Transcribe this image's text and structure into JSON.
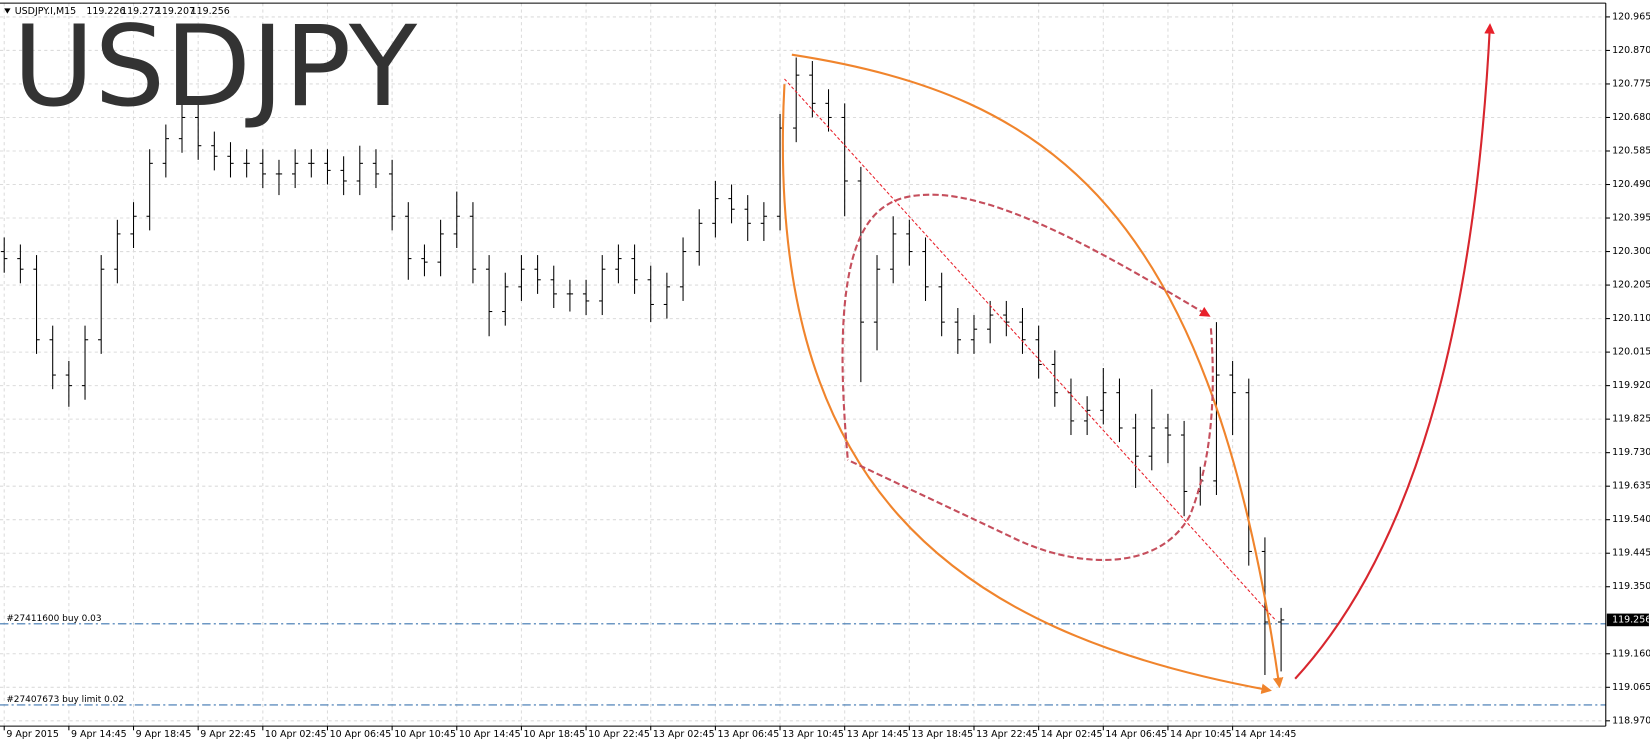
{
  "chart_data": {
    "type": "ohlc",
    "symbol": "USDJPY.I,M15",
    "header_values": [
      119.226,
      119.272,
      119.207,
      119.256
    ],
    "watermark": "USDJPY",
    "ylim": [
      118.955,
      121.004
    ],
    "yticks": [
      {
        "value": 118.97,
        "label": "118.970"
      },
      119.065,
      {
        "value": 119.16,
        "label": "119.160"
      },
      {
        "value": 119.35,
        "label": "119.350"
      },
      119.445,
      {
        "value": 119.54,
        "label": "119.540"
      },
      119.635,
      {
        "value": 119.73,
        "label": "119.730"
      },
      119.825,
      {
        "value": 119.92,
        "label": "119.920"
      },
      120.015,
      {
        "value": 120.11,
        "label": "120.110"
      },
      120.205,
      {
        "value": 120.3,
        "label": "120.300"
      },
      120.395,
      {
        "value": 120.49,
        "label": "120.490"
      },
      120.585,
      {
        "value": 120.68,
        "label": "120.680"
      },
      120.775,
      {
        "value": 120.87,
        "label": "120.870"
      },
      120.965
    ],
    "current_price": 119.256,
    "grid": true,
    "color": "#000000",
    "categories": [
      "9 Apr 2015",
      null,
      null,
      null,
      "9 Apr 14:45",
      null,
      null,
      null,
      "9 Apr 18:45",
      null,
      null,
      null,
      "9 Apr 22:45",
      null,
      null,
      null,
      "10 Apr 02:45",
      null,
      null,
      null,
      "10 Apr 06:45",
      null,
      null,
      null,
      "10 Apr 10:45",
      null,
      null,
      null,
      "10 Apr 14:45",
      null,
      null,
      null,
      "10 Apr 18:45",
      null,
      null,
      null,
      "10 Apr 22:45",
      null,
      null,
      null,
      "13 Apr 02:45",
      null,
      null,
      null,
      "13 Apr 06:45",
      null,
      null,
      null,
      "13 Apr 10:45",
      null,
      null,
      null,
      "13 Apr 14:45",
      null,
      null,
      null,
      "13 Apr 18:45",
      null,
      null,
      null,
      "13 Apr 22:45",
      null,
      null,
      null,
      "14 Apr 02:45",
      null,
      null,
      null,
      "14 Apr 06:45",
      null,
      null,
      null,
      "14 Apr 10:45",
      null,
      null,
      null,
      "14 Apr 14:45",
      null,
      null,
      null
    ],
    "ohlc": {
      "open": [
        120.3,
        120.28,
        120.25,
        120.05,
        119.95,
        119.92,
        120.05,
        120.25,
        120.35,
        120.4,
        120.55,
        120.62,
        120.68,
        120.6,
        120.57,
        120.55,
        120.55,
        120.52,
        120.52,
        120.55,
        120.55,
        120.53,
        120.5,
        120.55,
        120.52,
        120.4,
        120.28,
        120.27,
        120.35,
        120.4,
        120.25,
        120.13,
        120.2,
        120.25,
        120.22,
        120.18,
        120.18,
        120.16,
        120.25,
        120.28,
        120.22,
        120.15,
        120.2,
        120.3,
        120.38,
        120.45,
        120.42,
        120.38,
        120.4,
        120.65,
        120.8,
        120.72,
        120.68,
        120.5,
        120.1,
        120.25,
        120.35,
        120.3,
        120.2,
        120.1,
        120.05,
        120.08,
        120.12,
        120.1,
        120.05,
        119.98,
        119.9,
        119.82,
        119.85,
        119.9,
        119.8,
        119.72,
        119.8,
        119.78,
        119.62,
        119.65,
        119.95,
        119.9,
        119.45,
        119.25
      ],
      "high": [
        120.34,
        120.32,
        120.29,
        120.09,
        119.99,
        120.09,
        120.29,
        120.39,
        120.44,
        120.59,
        120.66,
        120.73,
        120.72,
        120.64,
        120.61,
        120.59,
        120.59,
        120.56,
        120.59,
        120.59,
        120.59,
        120.57,
        120.6,
        120.59,
        120.56,
        120.44,
        120.32,
        120.39,
        120.47,
        120.44,
        120.29,
        120.24,
        120.29,
        120.29,
        120.26,
        120.22,
        120.22,
        120.29,
        120.32,
        120.32,
        120.26,
        120.24,
        120.34,
        120.42,
        120.5,
        120.49,
        120.46,
        120.44,
        120.69,
        120.85,
        120.84,
        120.76,
        120.72,
        120.54,
        120.29,
        120.4,
        120.39,
        120.34,
        120.24,
        120.14,
        120.12,
        120.16,
        120.16,
        120.14,
        120.09,
        120.02,
        119.94,
        119.89,
        119.97,
        119.94,
        119.84,
        119.91,
        119.84,
        119.82,
        119.69,
        120.1,
        119.99,
        119.94,
        119.49,
        119.29
      ],
      "low": [
        120.24,
        120.21,
        120.01,
        119.91,
        119.86,
        119.88,
        120.01,
        120.21,
        120.31,
        120.36,
        120.51,
        120.58,
        120.56,
        120.53,
        120.51,
        120.51,
        120.48,
        120.46,
        120.48,
        120.51,
        120.49,
        120.46,
        120.46,
        120.48,
        120.36,
        120.22,
        120.23,
        120.23,
        120.31,
        120.21,
        120.06,
        120.09,
        120.16,
        120.18,
        120.14,
        120.13,
        120.12,
        120.12,
        120.21,
        120.18,
        120.1,
        120.11,
        120.16,
        120.26,
        120.34,
        120.38,
        120.33,
        120.33,
        120.36,
        120.61,
        120.68,
        120.64,
        120.4,
        119.93,
        120.02,
        120.21,
        120.26,
        120.16,
        120.06,
        120.01,
        120.01,
        120.04,
        120.06,
        120.01,
        119.94,
        119.86,
        119.78,
        119.78,
        119.81,
        119.76,
        119.63,
        119.68,
        119.7,
        119.55,
        119.58,
        119.61,
        119.78,
        119.41,
        119.1,
        119.11
      ],
      "close": [
        120.28,
        120.25,
        120.05,
        119.95,
        119.92,
        120.05,
        120.25,
        120.35,
        120.4,
        120.55,
        120.62,
        120.68,
        120.6,
        120.57,
        120.55,
        120.55,
        120.52,
        120.52,
        120.55,
        120.55,
        120.53,
        120.5,
        120.55,
        120.52,
        120.4,
        120.28,
        120.27,
        120.35,
        120.4,
        120.25,
        120.13,
        120.2,
        120.25,
        120.22,
        120.18,
        120.18,
        120.16,
        120.25,
        120.28,
        120.22,
        120.15,
        120.2,
        120.3,
        120.38,
        120.45,
        120.42,
        120.38,
        120.4,
        120.65,
        120.8,
        120.72,
        120.68,
        120.5,
        120.1,
        120.25,
        120.35,
        120.3,
        120.2,
        120.1,
        120.05,
        120.08,
        120.12,
        120.1,
        120.05,
        119.98,
        119.9,
        119.82,
        119.85,
        119.9,
        119.8,
        119.72,
        119.8,
        119.78,
        119.62,
        119.65,
        119.95,
        119.9,
        119.45,
        119.25,
        119.256
      ]
    },
    "orders": [
      {
        "label": "#27411600 buy 0.03",
        "price": 119.245,
        "color": "#3d76b0"
      },
      {
        "label": "#27407673 buy limit 0.02",
        "price": 119.015,
        "color": "#3d76b0"
      }
    ]
  }
}
